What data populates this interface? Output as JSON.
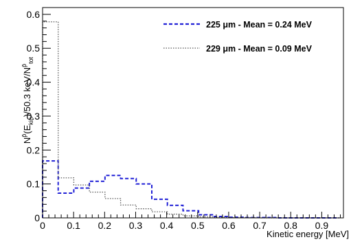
{
  "chart_data": {
    "type": "step-histogram",
    "xlabel": "Kinetic energy [MeV]",
    "ylabel": "N^p̄(E_kin)/50.3 keV/N^p̄_tot",
    "xlim": [
      0,
      0.97
    ],
    "ylim": [
      0,
      0.62
    ],
    "xticks": [
      "0",
      "0.1",
      "0.2",
      "0.3",
      "0.4",
      "0.5",
      "0.6",
      "0.7",
      "0.8",
      "0.9"
    ],
    "xtick_values": [
      0,
      0.1,
      0.2,
      0.3,
      0.4,
      0.5,
      0.6,
      0.7,
      0.8,
      0.9
    ],
    "yticks": [
      "0",
      "0.1",
      "0.2",
      "0.3",
      "0.4",
      "0.5",
      "0.6"
    ],
    "ytick_values": [
      0,
      0.1,
      0.2,
      0.3,
      0.4,
      0.5,
      0.6
    ],
    "bin_width": 0.0503,
    "legend_position": "top-right",
    "grid": false,
    "series": [
      {
        "name": "225 μm - Mean = 0.24 MeV",
        "color": "#1f1fd6",
        "style": "dashed",
        "values": [
          0.168,
          0.073,
          0.088,
          0.108,
          0.125,
          0.116,
          0.1,
          0.055,
          0.037,
          0.021,
          0.009,
          0.004,
          0.002,
          0.001,
          0.001,
          0.0,
          0.0,
          0.0,
          0.0
        ]
      },
      {
        "name": "229 μm - Mean = 0.09 MeV",
        "color": "#555555",
        "style": "dotted",
        "values": [
          0.578,
          0.118,
          0.097,
          0.076,
          0.057,
          0.038,
          0.027,
          0.018,
          0.011,
          0.006,
          0.003,
          0.002,
          0.001,
          0.001,
          0.0,
          0.0,
          0.0,
          0.0,
          0.0
        ]
      }
    ]
  },
  "legend": {
    "entries": [
      {
        "label": "225 μm - Mean = 0.24 MeV",
        "color": "#1f1fd6",
        "style": "dashed"
      },
      {
        "label": "229 μm - Mean = 0.09 MeV",
        "color": "#555555",
        "style": "dotted"
      }
    ]
  }
}
